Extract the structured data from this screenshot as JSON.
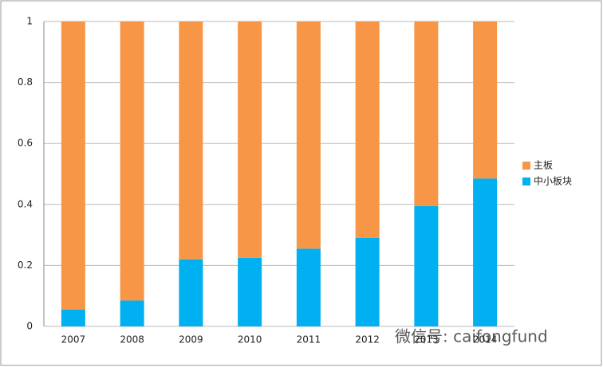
{
  "chart_data": {
    "type": "stacked_bar",
    "categories": [
      "2007",
      "2008",
      "2009",
      "2010",
      "2011",
      "2012",
      "2013",
      "2014"
    ],
    "series": [
      {
        "name": "中小板块",
        "color": "#00b0f0",
        "values": [
          0.055,
          0.085,
          0.22,
          0.225,
          0.255,
          0.29,
          0.395,
          0.485
        ]
      },
      {
        "name": "主板",
        "color": "#f79646",
        "values": [
          0.945,
          0.915,
          0.78,
          0.775,
          0.745,
          0.71,
          0.605,
          0.515
        ]
      }
    ],
    "ylim": [
      0,
      1
    ],
    "yticks": [
      0,
      0.2,
      0.4,
      0.6,
      0.8,
      1
    ],
    "grid": true,
    "legend": "right",
    "watermark": "微信号: caifongfund"
  }
}
